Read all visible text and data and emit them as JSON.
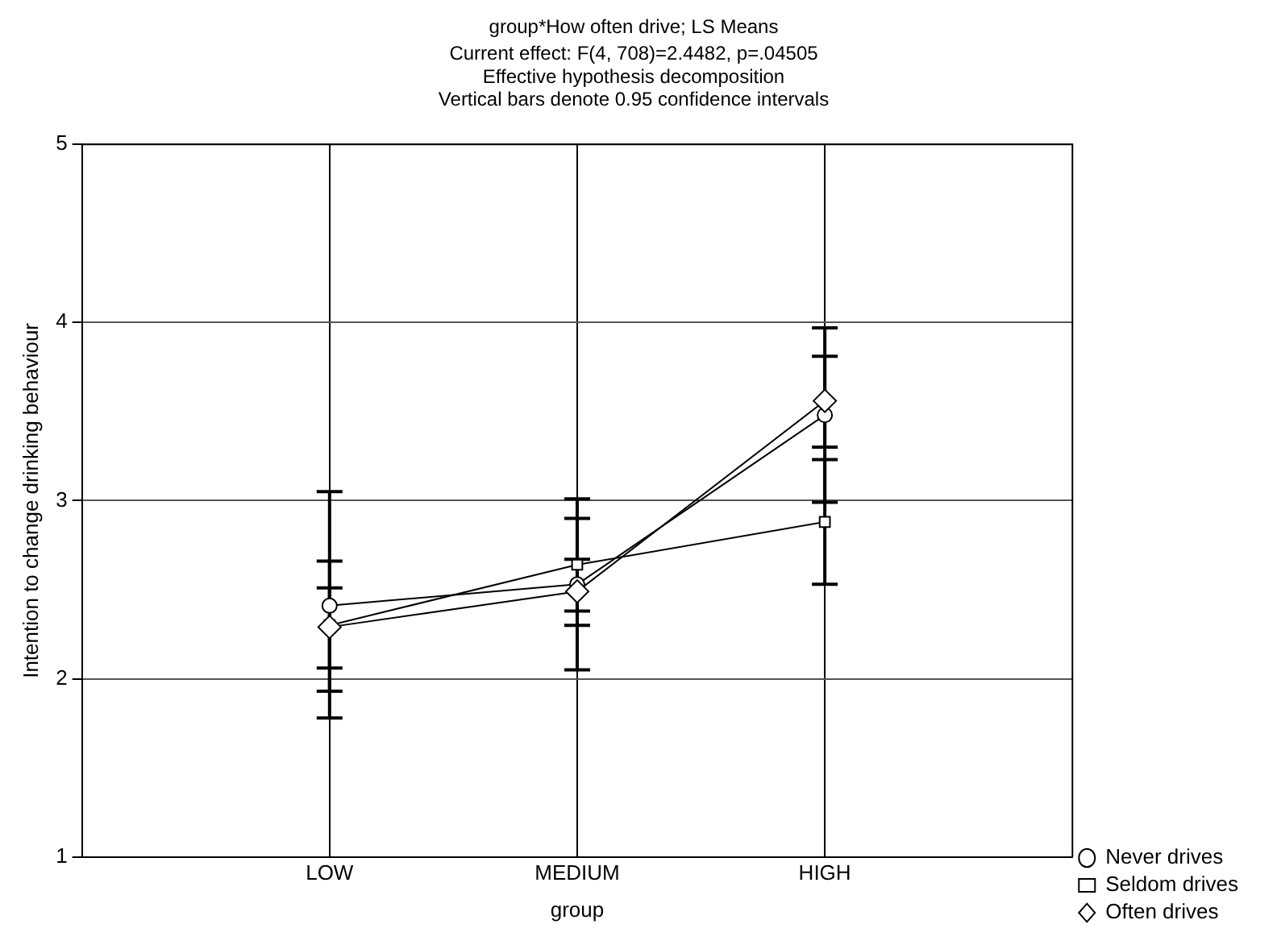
{
  "chart_data": {
    "type": "line",
    "title": "group*How often drive; LS Means",
    "subtitle": "Current effect: F(4, 708)=2.4482, p=.04505\nEffective hypothesis decomposition\nVertical bars denote 0.95 confidence intervals",
    "xlabel": "group",
    "ylabel": "Intention to change drinking behaviour",
    "categories": [
      "LOW",
      "MEDIUM",
      "HIGH"
    ],
    "ylim": [
      1,
      5
    ],
    "yticks": [
      1,
      2,
      3,
      4,
      5
    ],
    "grid": true,
    "legend": "bottom right",
    "line_style": "solid",
    "series": [
      {
        "name": "Never drives",
        "color": "#000000",
        "marker": "circle",
        "values": [
          2.41,
          2.53,
          3.48
        ],
        "errors": [
          [
            1.78,
            3.05
          ],
          [
            2.05,
            3.01
          ],
          [
            2.99,
            3.97
          ]
        ]
      },
      {
        "name": "Seldom drives",
        "color": "#000000",
        "marker": "square",
        "values": [
          2.3,
          2.64,
          2.88
        ],
        "errors": [
          [
            1.93,
            2.66
          ],
          [
            2.38,
            2.9
          ],
          [
            2.53,
            3.23
          ]
        ]
      },
      {
        "name": "Often drives",
        "color": "#000000",
        "marker": "diamond",
        "values": [
          2.29,
          2.49,
          3.56
        ],
        "errors": [
          [
            2.06,
            2.51
          ],
          [
            2.3,
            2.67
          ],
          [
            3.3,
            3.81
          ]
        ]
      }
    ]
  }
}
